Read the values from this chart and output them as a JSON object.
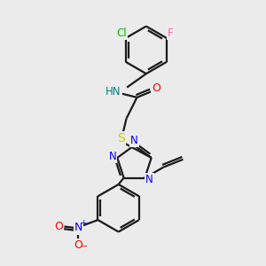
{
  "bg_color": "#ebebeb",
  "bond_color": "#1a1a1a",
  "colors": {
    "N": "#0000ff",
    "O": "#ff0000",
    "S": "#cccc00",
    "Cl": "#00bb00",
    "F": "#ff69b4",
    "H": "#008080",
    "C": "#1a1a1a"
  },
  "figsize": [
    3.0,
    3.0
  ],
  "dpi": 100
}
